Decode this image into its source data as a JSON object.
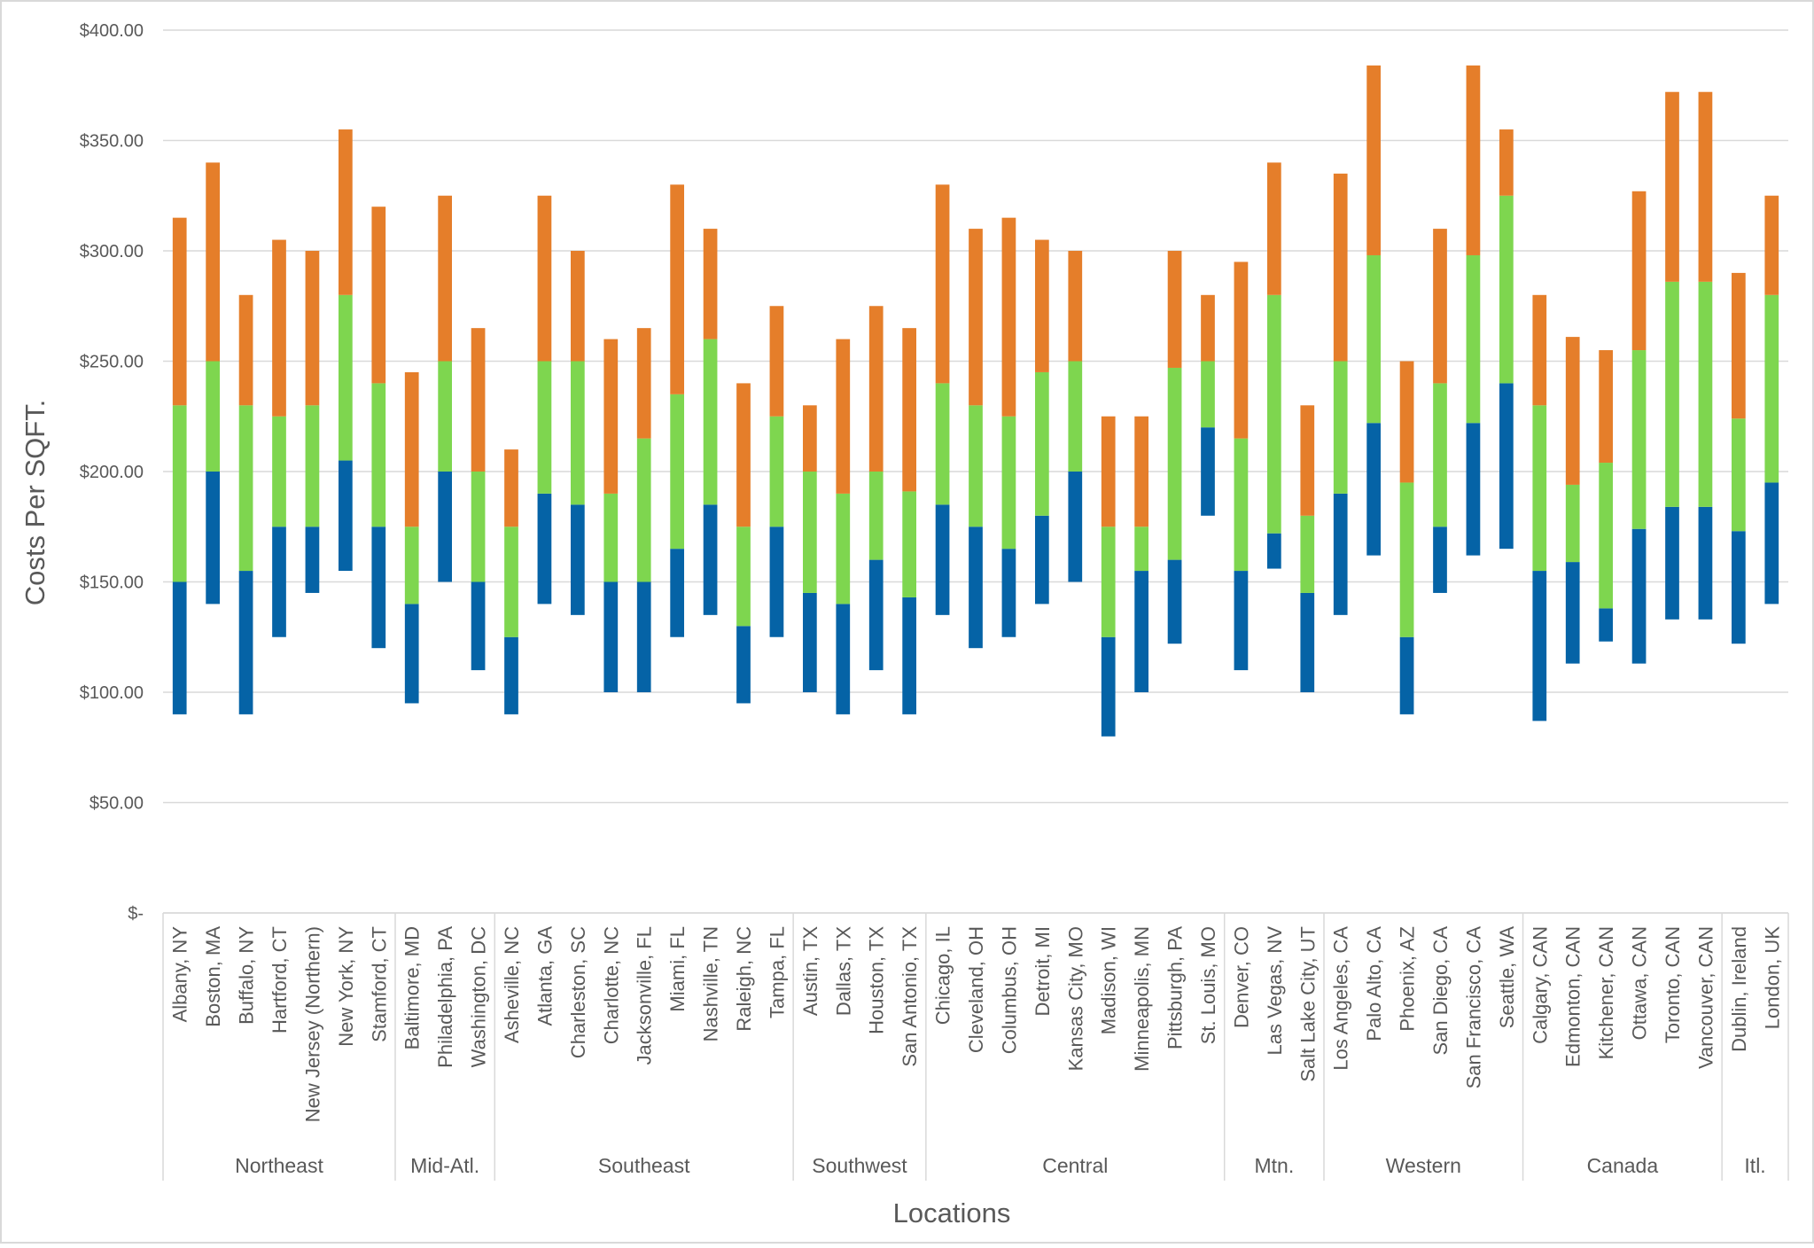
{
  "chart_data": {
    "type": "bar",
    "stacked": "floating",
    "title": "",
    "xlabel": "Locations",
    "ylabel": "Costs Per SQFT.",
    "ylim": [
      0,
      400
    ],
    "yticks": [
      0,
      50,
      100,
      150,
      200,
      250,
      300,
      350,
      400
    ],
    "ytick_labels": [
      "$-",
      "$50.00",
      "$100.00",
      "$150.00",
      "$200.00",
      "$250.00",
      "$300.00",
      "$350.00",
      "$400.00"
    ],
    "grid": true,
    "legend": "none",
    "colors": [
      "#0563a6",
      "#7ed64f",
      "#e57e2a"
    ],
    "groups": [
      {
        "name": "Northeast",
        "categories": [
          "Albany, NY",
          "Boston, MA",
          "Buffalo, NY",
          "Hartford, CT",
          "New Jersey (Northern)",
          "New York, NY",
          "Stamford, CT"
        ]
      },
      {
        "name": "Mid-Atl.",
        "categories": [
          "Baltimore, MD",
          "Philadelphia, PA",
          "Washington, DC"
        ]
      },
      {
        "name": "Southeast",
        "categories": [
          "Asheville, NC",
          "Atlanta, GA",
          "Charleston, SC",
          "Charlotte, NC",
          "Jacksonville, FL",
          "Miami, FL",
          "Nashville, TN",
          "Raleigh, NC",
          "Tampa, FL"
        ]
      },
      {
        "name": "Southwest",
        "categories": [
          "Austin, TX",
          "Dallas, TX",
          "Houston, TX",
          "San Antonio, TX"
        ]
      },
      {
        "name": "Central",
        "categories": [
          "Chicago, IL",
          "Cleveland, OH",
          "Columbus, OH",
          "Detroit, MI",
          "Kansas City, MO",
          "Madison, WI",
          "Minneapolis, MN",
          "Pittsburgh, PA",
          "St. Louis, MO"
        ]
      },
      {
        "name": "Mtn.",
        "categories": [
          "Denver, CO",
          "Las Vegas, NV",
          "Salt Lake City, UT"
        ]
      },
      {
        "name": "Western",
        "categories": [
          "Los Angeles, CA",
          "Palo Alto, CA",
          "Phoenix, AZ",
          "San Diego, CA",
          "San Francisco, CA",
          "Seattle, WA"
        ]
      },
      {
        "name": "Canada",
        "categories": [
          "Calgary, CAN",
          "Edmonton, CAN",
          "Kitchener, CAN",
          "Ottawa, CAN",
          "Toronto, CAN",
          "Vancouver, CAN"
        ]
      },
      {
        "name": "Itl.",
        "categories": [
          "Dublin, Ireland",
          "London, UK"
        ]
      }
    ],
    "segments": [
      [
        90,
        150,
        230,
        315
      ],
      [
        140,
        200,
        250,
        340
      ],
      [
        90,
        155,
        230,
        280
      ],
      [
        125,
        175,
        225,
        305
      ],
      [
        145,
        175,
        230,
        300
      ],
      [
        155,
        205,
        280,
        355
      ],
      [
        120,
        175,
        240,
        320
      ],
      [
        95,
        140,
        175,
        245
      ],
      [
        150,
        200,
        250,
        325
      ],
      [
        110,
        150,
        200,
        265
      ],
      [
        90,
        125,
        175,
        210
      ],
      [
        140,
        190,
        250,
        325
      ],
      [
        135,
        185,
        250,
        300
      ],
      [
        100,
        150,
        190,
        260
      ],
      [
        100,
        150,
        215,
        265
      ],
      [
        125,
        165,
        235,
        330
      ],
      [
        135,
        185,
        260,
        310
      ],
      [
        95,
        130,
        175,
        240
      ],
      [
        125,
        175,
        225,
        275
      ],
      [
        100,
        145,
        200,
        230
      ],
      [
        90,
        140,
        190,
        260
      ],
      [
        110,
        160,
        200,
        275
      ],
      [
        90,
        143,
        191,
        265
      ],
      [
        135,
        185,
        240,
        330
      ],
      [
        120,
        175,
        230,
        310
      ],
      [
        125,
        165,
        225,
        315
      ],
      [
        140,
        180,
        245,
        305
      ],
      [
        150,
        200,
        250,
        300
      ],
      [
        80,
        125,
        175,
        225
      ],
      [
        100,
        155,
        175,
        225
      ],
      [
        122,
        160,
        247,
        300
      ],
      [
        180,
        220,
        250,
        280
      ],
      [
        110,
        155,
        215,
        295
      ],
      [
        156,
        172,
        280,
        340
      ],
      [
        100,
        145,
        180,
        230
      ],
      [
        135,
        190,
        250,
        335
      ],
      [
        162,
        222,
        298,
        384
      ],
      [
        90,
        125,
        195,
        250
      ],
      [
        145,
        175,
        240,
        310
      ],
      [
        162,
        222,
        298,
        384
      ],
      [
        165,
        240,
        325,
        355
      ],
      [
        87,
        155,
        230,
        280
      ],
      [
        113,
        159,
        194,
        261
      ],
      [
        123,
        138,
        204,
        255
      ],
      [
        113,
        174,
        255,
        327
      ],
      [
        133,
        184,
        286,
        372
      ],
      [
        133,
        184,
        286,
        372
      ],
      [
        122,
        173,
        224,
        290
      ],
      [
        140,
        195,
        280,
        325
      ]
    ]
  }
}
